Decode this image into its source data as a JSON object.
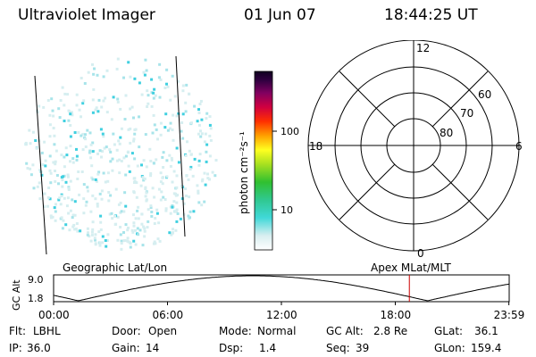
{
  "header": {
    "instrument": "Ultraviolet Imager",
    "date": "01 Jun 07",
    "time": "18:44:25 UT"
  },
  "colorbar": {
    "unit_label": "photon cm⁻²s⁻¹",
    "ticks": [
      "100",
      "10"
    ],
    "scale": "log"
  },
  "polar_plot": {
    "mlt_labels": [
      "12",
      "18",
      "6",
      "0"
    ],
    "lat_labels": [
      "60",
      "70",
      "80"
    ],
    "projection_label": "Apex MLat/MLT"
  },
  "left_map": {
    "projection_label": "Geographic Lat/Lon"
  },
  "altitude_track": {
    "ylabel": "GC Alt",
    "y_ticks": [
      "9.0",
      "1.8"
    ],
    "x_ticks": [
      "00:00",
      "06:00",
      "12:00",
      "18:00",
      "23:59"
    ],
    "marker_time": "18:44:25",
    "marker_color": "#cc0000"
  },
  "info": {
    "flt_label": "Flt:",
    "flt_value": "LBHL",
    "ip_label": "IP:",
    "ip_value": "36.0",
    "door_label": "Door:",
    "door_value": "Open",
    "gain_label": "Gain:",
    "gain_value": "14",
    "mode_label": "Mode:",
    "mode_value": "Normal",
    "dsp_label": "Dsp:",
    "dsp_value": "1.4",
    "gcalt_label": "GC Alt:",
    "gcalt_value": "2.8 Re",
    "seq_label": "Seq:",
    "seq_value": "39",
    "glat_label": "GLat:",
    "glat_value": "36.1",
    "glon_label": "GLon:",
    "glon_value": "159.4"
  }
}
